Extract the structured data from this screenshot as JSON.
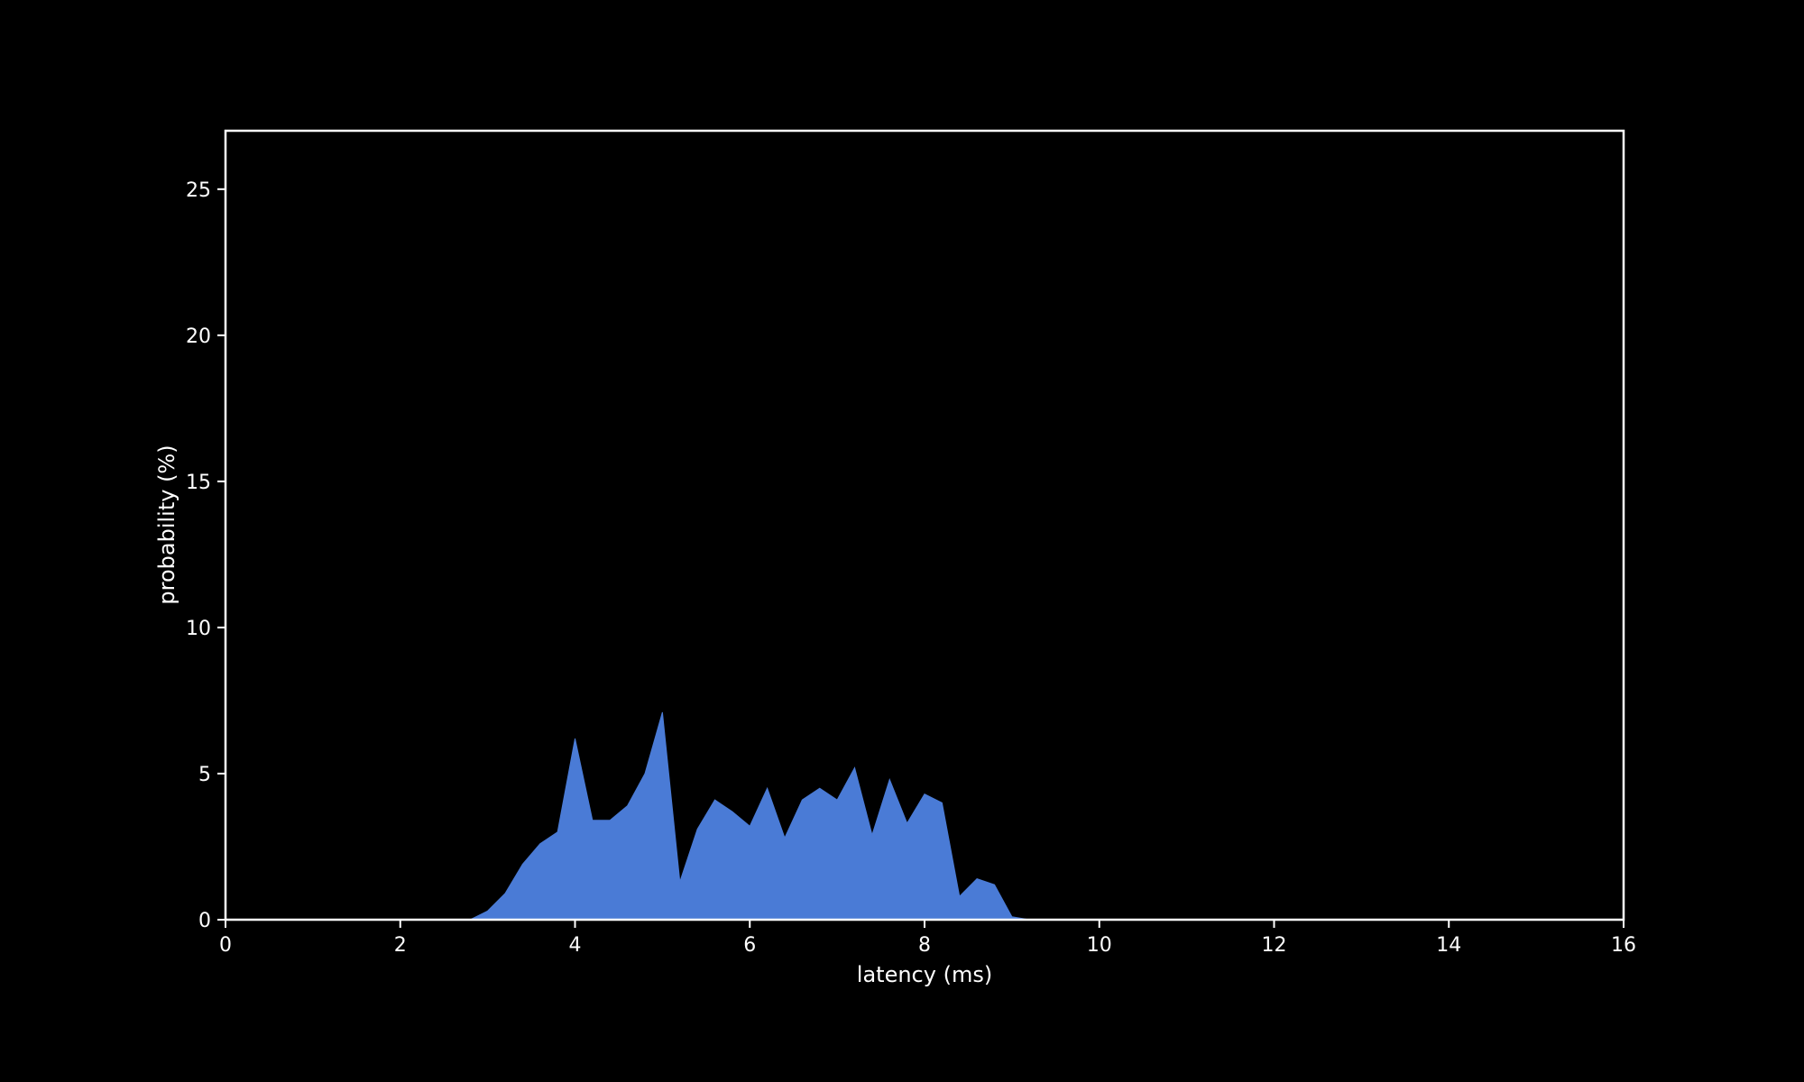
{
  "chart_data": {
    "type": "area",
    "title": "",
    "xlabel": "latency (ms)",
    "ylabel": "probability (%)",
    "xlim": [
      0,
      16
    ],
    "ylim": [
      0,
      27
    ],
    "xticks": [
      0,
      2,
      4,
      6,
      8,
      10,
      12,
      14,
      16
    ],
    "yticks": [
      0,
      5,
      10,
      15,
      20,
      25
    ],
    "grid": false,
    "colors": {
      "background": "#000000",
      "axes": "#ffffff",
      "fill": "#4a7bd6"
    },
    "series": [
      {
        "x": [
          0,
          2.8,
          3.0,
          3.2,
          3.4,
          3.6,
          3.8,
          4.0,
          4.2,
          4.4,
          4.6,
          4.8,
          5.0,
          5.2,
          5.4,
          5.6,
          5.8,
          6.0,
          6.2,
          6.4,
          6.6,
          6.8,
          7.0,
          7.2,
          7.4,
          7.6,
          7.8,
          8.0,
          8.2,
          8.4,
          8.6,
          8.8,
          9.0,
          9.2,
          16
        ],
        "y": [
          0,
          0,
          0.3,
          0.9,
          1.9,
          2.6,
          3.0,
          6.2,
          3.4,
          3.4,
          3.9,
          5.0,
          7.1,
          1.3,
          3.1,
          4.1,
          3.7,
          3.2,
          4.5,
          2.8,
          4.1,
          4.5,
          4.1,
          5.2,
          2.9,
          4.8,
          3.3,
          4.3,
          4.0,
          0.8,
          1.4,
          1.2,
          0.1,
          0,
          0
        ]
      }
    ]
  }
}
